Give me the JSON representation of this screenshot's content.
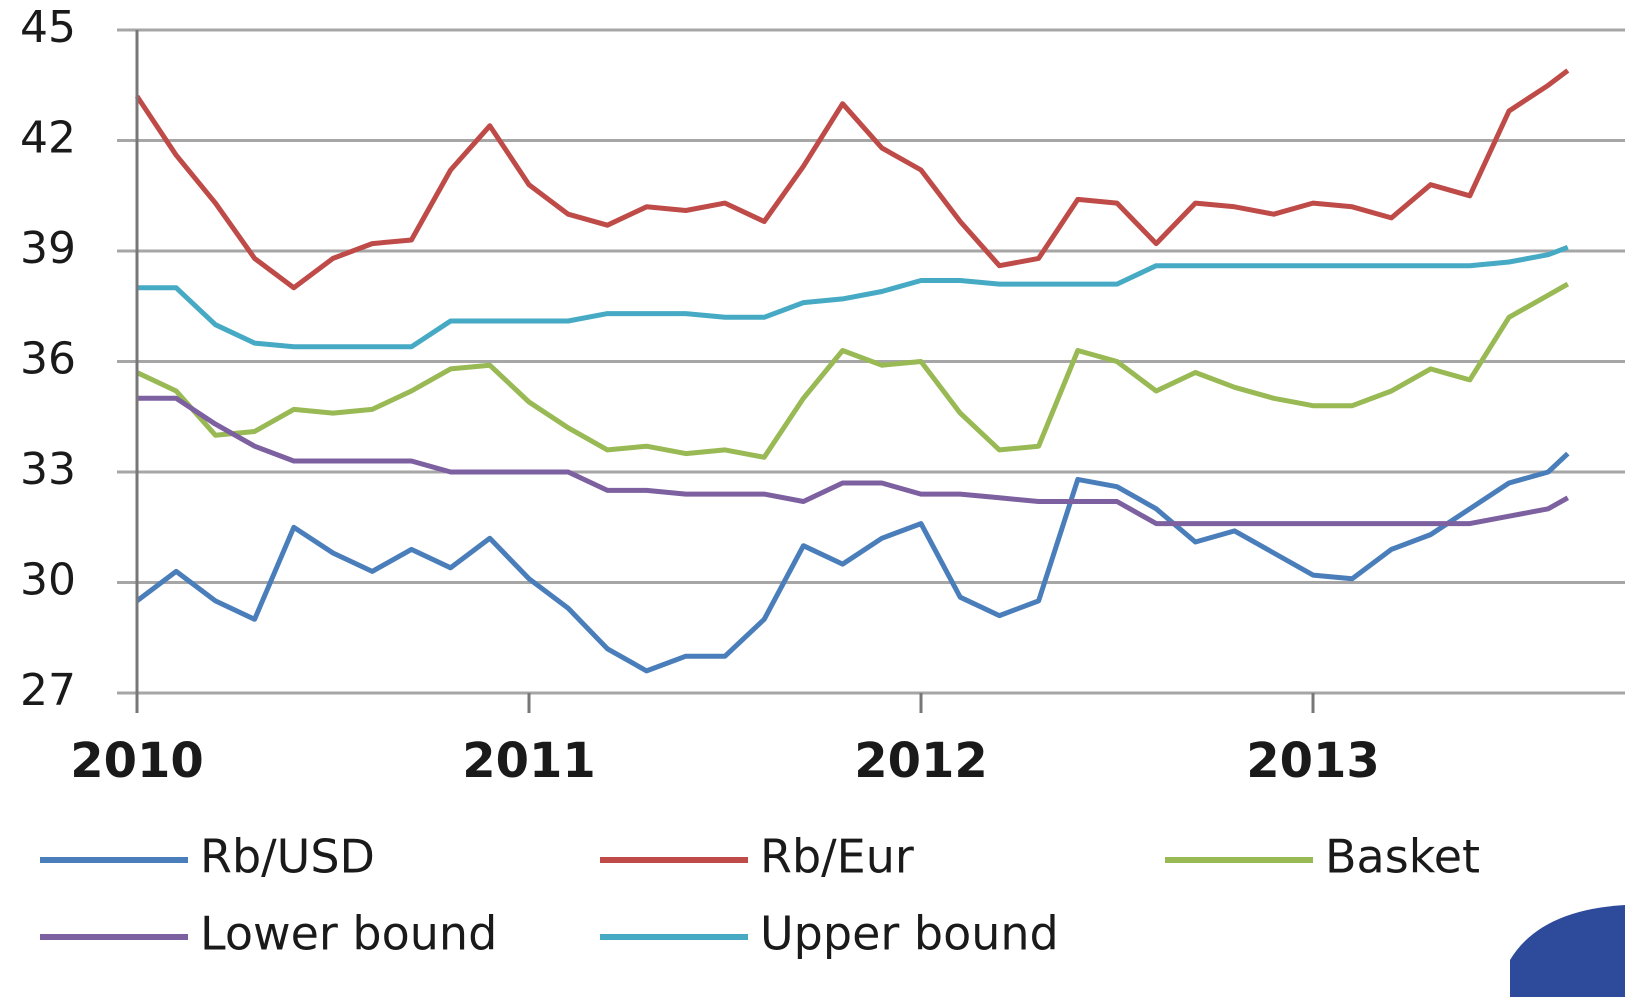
{
  "chart_data": {
    "type": "line",
    "x": [
      2010.0,
      2010.1,
      2010.2,
      2010.3,
      2010.4,
      2010.5,
      2010.6,
      2010.7,
      2010.8,
      2010.9,
      2011.0,
      2011.1,
      2011.2,
      2011.3,
      2011.4,
      2011.5,
      2011.6,
      2011.7,
      2011.8,
      2011.9,
      2012.0,
      2012.1,
      2012.2,
      2012.3,
      2012.4,
      2012.5,
      2012.6,
      2012.7,
      2012.8,
      2012.9,
      2013.0,
      2013.1,
      2013.2,
      2013.3,
      2013.4,
      2013.5,
      2013.6,
      2013.65
    ],
    "series": [
      {
        "name": "Rb/USD",
        "color": "#4a7ebb",
        "values": [
          29.5,
          30.3,
          29.5,
          29.0,
          31.5,
          30.8,
          30.3,
          30.9,
          30.4,
          31.2,
          30.1,
          29.3,
          28.2,
          27.6,
          28.0,
          28.0,
          29.0,
          31.0,
          30.5,
          31.2,
          31.6,
          29.6,
          29.1,
          29.5,
          32.8,
          32.6,
          32.0,
          31.1,
          31.4,
          30.8,
          30.2,
          30.1,
          30.9,
          31.3,
          32.0,
          32.7,
          33.0,
          33.5
        ]
      },
      {
        "name": "Rb/Eur",
        "color": "#be4b48",
        "values": [
          43.2,
          41.6,
          40.3,
          38.8,
          38.0,
          38.8,
          39.2,
          39.3,
          41.2,
          42.4,
          40.8,
          40.0,
          39.7,
          40.2,
          40.1,
          40.3,
          39.8,
          41.3,
          43.0,
          41.8,
          41.2,
          39.8,
          38.6,
          38.8,
          40.4,
          40.3,
          39.2,
          40.3,
          40.2,
          40.0,
          40.3,
          40.2,
          39.9,
          40.8,
          40.5,
          42.8,
          43.5,
          43.9
        ]
      },
      {
        "name": "Basket",
        "color": "#98b954",
        "values": [
          35.7,
          35.2,
          34.0,
          34.1,
          34.7,
          34.6,
          34.7,
          35.2,
          35.8,
          35.9,
          34.9,
          34.2,
          33.6,
          33.7,
          33.5,
          33.6,
          33.4,
          35.0,
          36.3,
          35.9,
          36.0,
          34.6,
          33.6,
          33.7,
          36.3,
          36.0,
          35.2,
          35.7,
          35.3,
          35.0,
          34.8,
          34.8,
          35.2,
          35.8,
          35.5,
          37.2,
          37.8,
          38.1
        ]
      },
      {
        "name": "Lower bound",
        "color": "#7d60a0",
        "values": [
          35.0,
          35.0,
          34.3,
          33.7,
          33.3,
          33.3,
          33.3,
          33.3,
          33.0,
          33.0,
          33.0,
          33.0,
          32.5,
          32.5,
          32.4,
          32.4,
          32.4,
          32.2,
          32.7,
          32.7,
          32.4,
          32.4,
          32.3,
          32.2,
          32.2,
          32.2,
          31.6,
          31.6,
          31.6,
          31.6,
          31.6,
          31.6,
          31.6,
          31.6,
          31.6,
          31.8,
          32.0,
          32.3
        ]
      },
      {
        "name": "Upper bound",
        "color": "#46aac5",
        "values": [
          38.0,
          38.0,
          37.0,
          36.5,
          36.4,
          36.4,
          36.4,
          36.4,
          37.1,
          37.1,
          37.1,
          37.1,
          37.3,
          37.3,
          37.3,
          37.2,
          37.2,
          37.6,
          37.7,
          37.9,
          38.2,
          38.2,
          38.1,
          38.1,
          38.1,
          38.1,
          38.6,
          38.6,
          38.6,
          38.6,
          38.6,
          38.6,
          38.6,
          38.6,
          38.6,
          38.7,
          38.9,
          39.1
        ]
      }
    ],
    "xlim": [
      2010,
      2013.65
    ],
    "xticks": [
      2010,
      2011,
      2012,
      2013
    ],
    "ylim": [
      27,
      45
    ],
    "yticks": [
      27,
      30,
      33,
      36,
      39,
      42,
      45
    ],
    "grid": true,
    "legend": "bottom"
  }
}
